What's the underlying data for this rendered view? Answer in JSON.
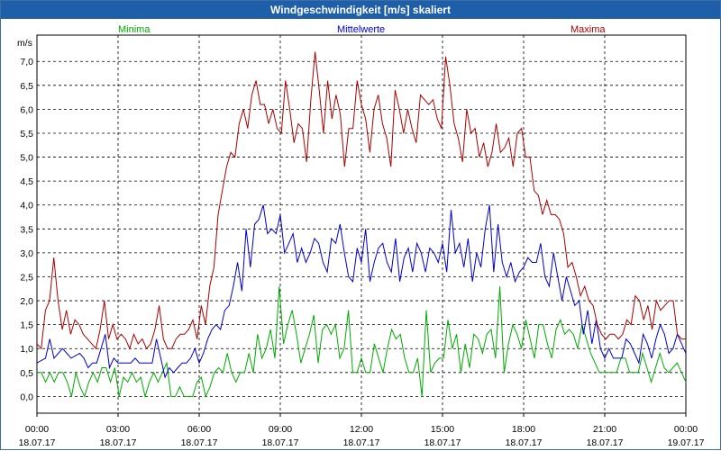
{
  "window": {
    "title": "Windgeschwindigkeit [m/s] skaliert"
  },
  "chart_data": {
    "type": "line",
    "title": "Windgeschwindigkeit [m/s] skaliert",
    "ylabel": "m/s",
    "xlabel": "",
    "ylim": [
      -0.35,
      7.55
    ],
    "xlim": [
      0,
      24
    ],
    "grid": true,
    "legend_placement": "top",
    "yticks": [
      "0,0",
      "0,5",
      "1,0",
      "1,5",
      "2,0",
      "2,5",
      "3,0",
      "3,5",
      "4,0",
      "4,5",
      "5,0",
      "5,5",
      "6,0",
      "6,5",
      "7,0"
    ],
    "xticks": [
      {
        "time": "00:00",
        "date": "18.07.17"
      },
      {
        "time": "03:00",
        "date": "18.07.17"
      },
      {
        "time": "06:00",
        "date": "18.07.17"
      },
      {
        "time": "09:00",
        "date": "18.07.17"
      },
      {
        "time": "12:00",
        "date": "18.07.17"
      },
      {
        "time": "15:00",
        "date": "18.07.17"
      },
      {
        "time": "18:00",
        "date": "18.07.17"
      },
      {
        "time": "21:00",
        "date": "18.07.17"
      },
      {
        "time": "00:00",
        "date": "19.07.17"
      }
    ],
    "x_step_hours": 0.1667,
    "series": [
      {
        "name": "Minima",
        "color": "#00aa00",
        "values": [
          0.5,
          0.5,
          0.3,
          0.5,
          0.3,
          0.5,
          0.5,
          0.3,
          0.0,
          0.5,
          0.2,
          0.0,
          0.3,
          0.5,
          0.3,
          0.6,
          0.6,
          0.3,
          0.6,
          0.0,
          0.4,
          0.3,
          0.5,
          0.3,
          0.4,
          0.0,
          0.3,
          0.5,
          0.3,
          0.5,
          0.7,
          0.0,
          0.0,
          0.2,
          0.0,
          0.0,
          0.0,
          0.3,
          0.4,
          0.0,
          0.2,
          0.5,
          0.6,
          0.5,
          0.9,
          0.5,
          0.3,
          0.5,
          0.5,
          0.9,
          0.5,
          1.3,
          0.8,
          1.0,
          1.4,
          0.8,
          2.3,
          1.1,
          1.5,
          1.8,
          1.3,
          0.7,
          1.0,
          1.3,
          1.7,
          0.7,
          1.4,
          1.5,
          1.3,
          1.5,
          0.8,
          1.0,
          1.8,
          0.5,
          0.5,
          0.8,
          0.5,
          0.5,
          1.1,
          0.8,
          0.5,
          1.0,
          1.4,
          1.2,
          1.3,
          0.8,
          0.5,
          0.5,
          0.8,
          0.0,
          1.8,
          0.5,
          0.7,
          0.8,
          0.8,
          1.6,
          1.0,
          1.3,
          0.5,
          1.1,
          0.6,
          1.3,
          1.2,
          0.9,
          1.3,
          1.4,
          0.8,
          2.3,
          0.5,
          1.1,
          1.5,
          1.3,
          1.0,
          1.6,
          1.2,
          0.8,
          1.5,
          1.5,
          1.1,
          0.8,
          1.4,
          1.6,
          1.3,
          1.4,
          1.3,
          1.0,
          1.5,
          1.2,
          0.9,
          0.7,
          0.5,
          0.5,
          0.5,
          0.5,
          0.5,
          0.8,
          0.8,
          0.5,
          0.5,
          0.5,
          0.9,
          0.6,
          0.3,
          0.6,
          0.9,
          0.6,
          0.5,
          0.6,
          0.7,
          0.5,
          0.3
        ]
      },
      {
        "name": "Mittelwerte",
        "color": "#0000cc",
        "values": [
          0.7,
          0.75,
          0.8,
          1.2,
          0.8,
          0.9,
          1.0,
          0.9,
          0.8,
          0.85,
          0.9,
          0.8,
          0.6,
          0.7,
          0.7,
          1.0,
          1.3,
          0.6,
          0.8,
          0.7,
          0.7,
          0.7,
          0.7,
          0.8,
          0.7,
          0.7,
          0.7,
          0.7,
          1.2,
          0.8,
          0.4,
          0.6,
          0.5,
          0.6,
          0.7,
          0.7,
          0.8,
          1.0,
          0.7,
          0.9,
          1.2,
          1.4,
          1.5,
          1.4,
          1.8,
          1.9,
          2.3,
          2.8,
          2.2,
          3.5,
          2.7,
          3.6,
          3.7,
          4.0,
          3.4,
          3.5,
          3.4,
          3.8,
          3.0,
          3.2,
          3.4,
          2.8,
          3.1,
          2.8,
          3.0,
          3.3,
          3.2,
          2.8,
          2.6,
          3.3,
          3.2,
          3.6,
          3.0,
          2.5,
          2.4,
          3.1,
          2.8,
          3.5,
          2.4,
          2.8,
          3.1,
          3.2,
          2.8,
          2.6,
          3.3,
          2.4,
          2.9,
          3.1,
          2.6,
          3.2,
          3.0,
          2.6,
          3.1,
          3.0,
          2.8,
          3.2,
          2.6,
          3.9,
          3.0,
          3.2,
          2.7,
          3.3,
          2.4,
          3.0,
          2.7,
          3.5,
          4.0,
          2.6,
          3.6,
          2.8,
          2.5,
          2.8,
          2.4,
          2.6,
          2.7,
          2.9,
          2.8,
          2.8,
          3.2,
          2.5,
          2.3,
          3.0,
          2.5,
          2.0,
          2.5,
          2.2,
          1.9,
          2.0,
          1.3,
          1.8,
          1.1,
          1.6,
          1.0,
          0.8,
          1.0,
          0.8,
          0.8,
          0.8,
          1.2,
          1.1,
          0.9,
          0.7,
          1.3,
          1.1,
          0.8,
          1.2,
          1.5,
          1.3,
          0.9,
          1.0,
          1.3,
          1.1,
          0.9
        ]
      },
      {
        "name": "Maxima",
        "color": "#aa0000",
        "values": [
          1.1,
          1.0,
          1.8,
          2.0,
          2.9,
          2.0,
          1.4,
          1.8,
          1.3,
          1.6,
          1.5,
          1.3,
          1.2,
          1.1,
          1.0,
          1.4,
          2.0,
          1.2,
          1.5,
          1.2,
          1.3,
          1.2,
          1.0,
          1.3,
          1.1,
          1.2,
          1.0,
          1.1,
          1.4,
          1.9,
          1.2,
          1.0,
          1.0,
          1.2,
          1.3,
          1.3,
          1.4,
          1.6,
          1.2,
          1.9,
          1.5,
          2.3,
          2.7,
          3.8,
          4.3,
          4.8,
          5.1,
          5.0,
          5.7,
          6.0,
          5.6,
          6.3,
          6.6,
          6.1,
          6.1,
          5.7,
          6.0,
          5.6,
          5.5,
          6.6,
          6.0,
          5.3,
          5.7,
          5.6,
          4.9,
          6.2,
          7.2,
          6.4,
          5.5,
          6.6,
          5.8,
          6.3,
          5.9,
          4.8,
          5.6,
          5.6,
          6.6,
          6.1,
          5.8,
          5.1,
          6.0,
          6.3,
          5.7,
          5.4,
          4.8,
          6.4,
          6.0,
          5.5,
          6.0,
          5.6,
          5.3,
          6.3,
          6.2,
          6.1,
          6.2,
          5.8,
          5.6,
          7.1,
          6.5,
          5.7,
          5.4,
          4.9,
          6.0,
          5.5,
          5.6,
          5.0,
          5.3,
          4.8,
          5.1,
          5.7,
          5.1,
          5.2,
          5.4,
          4.8,
          5.5,
          5.6,
          5.0,
          5.0,
          4.3,
          4.2,
          3.8,
          4.1,
          3.8,
          3.8,
          3.7,
          3.4,
          2.7,
          2.8,
          2.5,
          2.1,
          2.3,
          2.0,
          1.9,
          1.5,
          1.3,
          1.2,
          1.3,
          1.3,
          1.2,
          1.3,
          1.6,
          1.5,
          2.1,
          2.0,
          1.6,
          1.9,
          1.4,
          2.0,
          1.8,
          1.9,
          2.0,
          2.0,
          1.3,
          1.2,
          1.2
        ]
      }
    ]
  }
}
